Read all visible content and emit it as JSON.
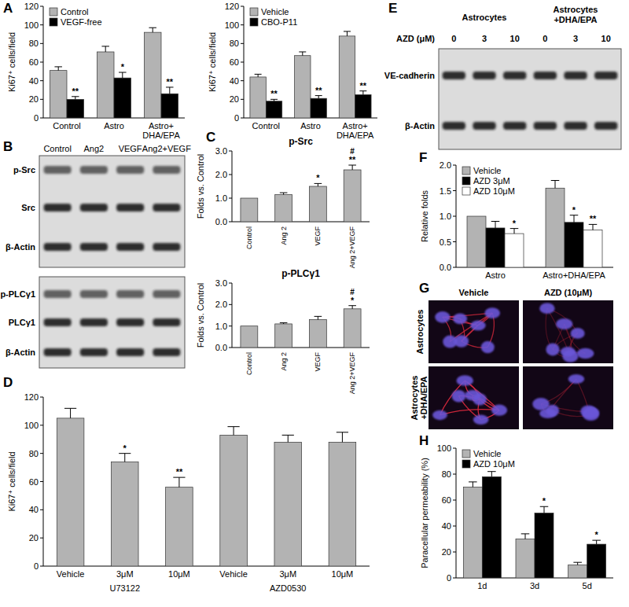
{
  "chart_data": [
    {
      "panel": "A",
      "type": "bar",
      "categories": [
        "Control",
        "Astro",
        "Astro+DHA/EPA"
      ],
      "ylabel": "Ki67⁺ cells/field",
      "ylim": [
        0,
        120
      ],
      "yticks": [
        0,
        20,
        40,
        60,
        80,
        100,
        120
      ],
      "grid": false,
      "legend": "upper-left",
      "series": [
        {
          "name": "Control",
          "color": "#b3b3b3",
          "values": [
            51,
            71,
            92
          ],
          "errors": [
            4,
            6,
            5
          ]
        },
        {
          "name": "VEGF-free",
          "color": "#000000",
          "values": [
            20,
            43,
            26
          ],
          "errors": [
            3,
            6,
            7
          ],
          "significance": [
            "**",
            "*",
            "**"
          ]
        }
      ]
    },
    {
      "type": "bar",
      "categories": [
        "Control",
        "Astro",
        "Astro+DHA/EPA"
      ],
      "ylabel": "Ki67⁺ cells/field",
      "ylim": [
        0,
        120
      ],
      "yticks": [
        0,
        20,
        40,
        60,
        80,
        100,
        120
      ],
      "grid": false,
      "legend": "upper-left",
      "series": [
        {
          "name": "Vehicle",
          "color": "#b3b3b3",
          "values": [
            44,
            67,
            88
          ],
          "errors": [
            3,
            4,
            5
          ]
        },
        {
          "name": "CBO-P11",
          "color": "#000000",
          "values": [
            18,
            21,
            25
          ],
          "errors": [
            2,
            3,
            4
          ],
          "significance": [
            "**",
            "**",
            "**"
          ]
        }
      ]
    },
    {
      "panel": "C",
      "type": "bar",
      "title": "p-Src",
      "categories": [
        "Control",
        "Ang 2",
        "VEGF",
        "Ang 2+VEGF"
      ],
      "ylabel": "Folds vs. Control",
      "ylim": [
        0,
        3
      ],
      "yticks": [
        {
          "value": 0,
          "label": "0.0"
        },
        {
          "value": 1,
          "label": "1.0"
        },
        {
          "value": 2,
          "label": "2.0"
        },
        {
          "value": 3,
          "label": "3.0"
        }
      ],
      "grid": false,
      "color": "#b3b3b3",
      "values": [
        1.0,
        1.15,
        1.5,
        2.2
      ],
      "errors": [
        0,
        0.08,
        0.12,
        0.2
      ],
      "significance": [
        null,
        null,
        "*",
        "**"
      ],
      "significance2": [
        null,
        null,
        null,
        "#"
      ]
    },
    {
      "type": "bar",
      "title": "p-PLCγ1",
      "categories": [
        "Control",
        "Ang 2",
        "VEGF",
        "Ang 2+VEGF"
      ],
      "ylabel": "Folds vs. Control",
      "ylim": [
        0,
        3
      ],
      "yticks": [
        {
          "value": 0,
          "label": "0.0"
        },
        {
          "value": 1,
          "label": "1.0"
        },
        {
          "value": 2,
          "label": "2.0"
        },
        {
          "value": 3,
          "label": "3.0"
        }
      ],
      "grid": false,
      "color": "#b3b3b3",
      "values": [
        1.0,
        1.1,
        1.3,
        1.8
      ],
      "errors": [
        0,
        0.05,
        0.15,
        0.15
      ],
      "significance": [
        null,
        null,
        null,
        "*"
      ],
      "significance2": [
        null,
        null,
        null,
        "#"
      ]
    },
    {
      "panel": "D",
      "type": "bar",
      "categories": [
        "Vehicle",
        "3μM",
        "10μM",
        "Vehicle",
        "3μM",
        "10μM"
      ],
      "group_labels": [
        "U73122",
        "AZD0530"
      ],
      "ylabel": "Ki67⁺ cells/field",
      "ylim": [
        0,
        120
      ],
      "yticks": [
        0,
        20,
        40,
        60,
        80,
        100,
        120
      ],
      "grid": false,
      "color": "#b3b3b3",
      "values": [
        105,
        74,
        56,
        93,
        88,
        88
      ],
      "errors": [
        7,
        6,
        7,
        6,
        5,
        7
      ],
      "significance": [
        null,
        "*",
        "**",
        null,
        null,
        null
      ]
    },
    {
      "panel": "F",
      "type": "bar",
      "categories": [
        "Astro",
        "Astro+DHA/EPA"
      ],
      "ylabel": "Relative folds",
      "ylim": [
        0,
        2
      ],
      "yticks": [
        {
          "value": 0,
          "label": "0.0"
        },
        {
          "value": 0.5,
          "label": "0.5"
        },
        {
          "value": 1,
          "label": "1.0"
        },
        {
          "value": 1.5,
          "label": "1.5"
        },
        {
          "value": 2,
          "label": "2.0"
        }
      ],
      "grid": false,
      "legend": "upper-left",
      "series": [
        {
          "name": "Vehicle",
          "color": "#b3b3b3",
          "values": [
            1.0,
            1.55
          ],
          "errors": [
            0,
            0.15
          ]
        },
        {
          "name": "AZD 3μM",
          "color": "#000000",
          "values": [
            0.77,
            0.88
          ],
          "errors": [
            0.13,
            0.14
          ],
          "significance": [
            null,
            "*"
          ]
        },
        {
          "name": "AZD 10μM",
          "color": "#ffffff",
          "values": [
            0.66,
            0.73
          ],
          "errors": [
            0.1,
            0.11
          ],
          "significance": [
            "*",
            "**"
          ]
        }
      ]
    },
    {
      "panel": "H",
      "type": "bar",
      "categories": [
        "1d",
        "3d",
        "5d"
      ],
      "ylabel": "Paracellular permeability (%)",
      "ylim": [
        0,
        100
      ],
      "yticks": [
        0,
        20,
        40,
        60,
        80,
        100
      ],
      "grid": false,
      "legend": "upper-left",
      "series": [
        {
          "name": "Vehicle",
          "color": "#b3b3b3",
          "values": [
            70,
            30,
            10
          ],
          "errors": [
            4,
            4,
            2
          ]
        },
        {
          "name": "AZD 10μM",
          "color": "#000000",
          "values": [
            78,
            50,
            26
          ],
          "errors": [
            4,
            5,
            3
          ],
          "significance": [
            null,
            "*",
            "*"
          ]
        }
      ]
    }
  ],
  "blots": [
    {
      "panel": "B",
      "lanes": [
        "Control",
        "Ang2",
        "VEGF",
        "Ang2+VEGF"
      ],
      "rows": [
        "p-Src",
        "Src",
        "β-Actin"
      ]
    },
    {
      "rows": [
        "p-PLCγ1",
        "PLCγ1",
        "β-Actin"
      ]
    },
    {
      "panel": "E",
      "lane_groups": [
        "Astrocytes",
        "Astrocytes +DHA/EPA"
      ],
      "lane_title": "AZD (μM)",
      "lanes": [
        0,
        3,
        10,
        0,
        3,
        10
      ],
      "rows": [
        "VE-cadherin",
        "β-Actin"
      ]
    }
  ],
  "images": {
    "panel": "G",
    "columns": [
      "Vehicle",
      "AZD (10μM)"
    ],
    "rows": [
      "Astrocytes",
      "Astrocytes +DHA/EPA"
    ]
  }
}
